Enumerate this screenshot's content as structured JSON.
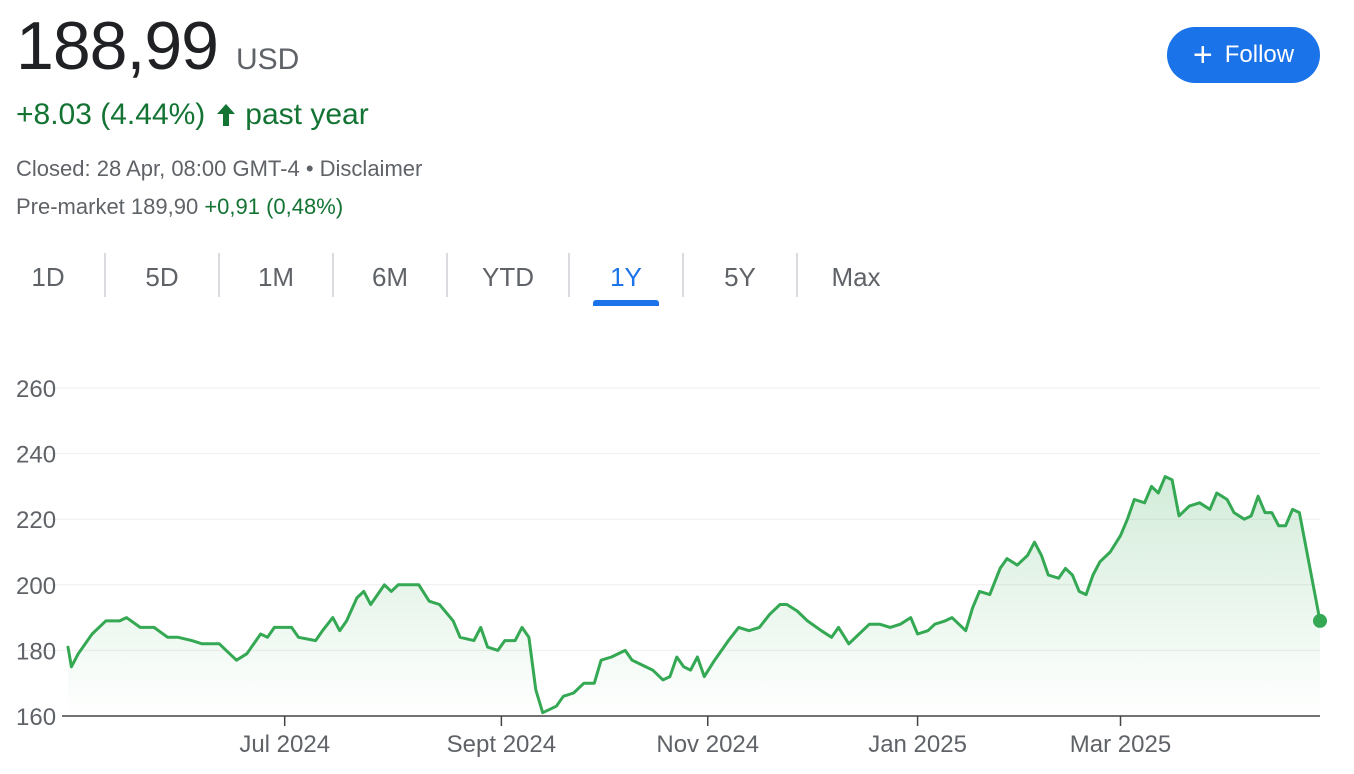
{
  "quote": {
    "price": "188,99",
    "currency": "USD",
    "change": "+8.03 (4.44%)",
    "period": "past year",
    "closed_text": "Closed: 28 Apr, 08:00 GMT-4",
    "separator": " • ",
    "disclaimer": "Disclaimer",
    "premarket_label": "Pre-market 189,90",
    "premarket_change": "+0,91 (0,48%)"
  },
  "follow": {
    "label": "Follow",
    "icon": "plus-icon"
  },
  "ranges": [
    "1D",
    "5D",
    "1M",
    "6M",
    "YTD",
    "1Y",
    "5Y",
    "Max"
  ],
  "active_range": "1Y",
  "colors": {
    "up": "#137333",
    "line": "#34a853",
    "accent": "#1a73e8",
    "axis": "#5f6368",
    "grid": "#eeeeee"
  },
  "chart_data": {
    "type": "area",
    "title": "",
    "xlabel": "",
    "ylabel": "",
    "ylim": [
      160,
      260
    ],
    "yticks": [
      160,
      180,
      200,
      220,
      240,
      260
    ],
    "xlim": [
      "2024-04-29",
      "2025-04-28"
    ],
    "xticks": [
      {
        "label": "Jul 2024",
        "date": "2024-07-01"
      },
      {
        "label": "Sept 2024",
        "date": "2024-09-02"
      },
      {
        "label": "Nov 2024",
        "date": "2024-11-01"
      },
      {
        "label": "Jan 2025",
        "date": "2025-01-01"
      },
      {
        "label": "Mar 2025",
        "date": "2025-03-01"
      }
    ],
    "grid": true,
    "legend": "none",
    "series": [
      {
        "points": [
          [
            "2024-04-29",
            181
          ],
          [
            "2024-04-30",
            175
          ],
          [
            "2024-05-02",
            179
          ],
          [
            "2024-05-06",
            185
          ],
          [
            "2024-05-10",
            189
          ],
          [
            "2024-05-14",
            189
          ],
          [
            "2024-05-16",
            190
          ],
          [
            "2024-05-20",
            187
          ],
          [
            "2024-05-24",
            187
          ],
          [
            "2024-05-28",
            184
          ],
          [
            "2024-05-31",
            184
          ],
          [
            "2024-06-04",
            183
          ],
          [
            "2024-06-07",
            182
          ],
          [
            "2024-06-12",
            182
          ],
          [
            "2024-06-14",
            180
          ],
          [
            "2024-06-17",
            177
          ],
          [
            "2024-06-20",
            179
          ],
          [
            "2024-06-24",
            185
          ],
          [
            "2024-06-26",
            184
          ],
          [
            "2024-06-28",
            187
          ],
          [
            "2024-07-03",
            187
          ],
          [
            "2024-07-05",
            184
          ],
          [
            "2024-07-10",
            183
          ],
          [
            "2024-07-12",
            186
          ],
          [
            "2024-07-15",
            190
          ],
          [
            "2024-07-17",
            186
          ],
          [
            "2024-07-19",
            189
          ],
          [
            "2024-07-22",
            196
          ],
          [
            "2024-07-24",
            198
          ],
          [
            "2024-07-26",
            194
          ],
          [
            "2024-07-30",
            200
          ],
          [
            "2024-08-01",
            198
          ],
          [
            "2024-08-03",
            200
          ],
          [
            "2024-08-07",
            200
          ],
          [
            "2024-08-09",
            200
          ],
          [
            "2024-08-12",
            195
          ],
          [
            "2024-08-15",
            194
          ],
          [
            "2024-08-19",
            189
          ],
          [
            "2024-08-21",
            184
          ],
          [
            "2024-08-25",
            183
          ],
          [
            "2024-08-27",
            187
          ],
          [
            "2024-08-29",
            181
          ],
          [
            "2024-09-01",
            180
          ],
          [
            "2024-09-03",
            183
          ],
          [
            "2024-09-06",
            183
          ],
          [
            "2024-09-08",
            187
          ],
          [
            "2024-09-10",
            184
          ],
          [
            "2024-09-12",
            168
          ],
          [
            "2024-09-14",
            161
          ],
          [
            "2024-09-18",
            163
          ],
          [
            "2024-09-20",
            166
          ],
          [
            "2024-09-23",
            167
          ],
          [
            "2024-09-26",
            170
          ],
          [
            "2024-09-29",
            170
          ],
          [
            "2024-10-01",
            177
          ],
          [
            "2024-10-04",
            178
          ],
          [
            "2024-10-08",
            180
          ],
          [
            "2024-10-10",
            177
          ],
          [
            "2024-10-12",
            176
          ],
          [
            "2024-10-16",
            174
          ],
          [
            "2024-10-19",
            171
          ],
          [
            "2024-10-21",
            172
          ],
          [
            "2024-10-23",
            178
          ],
          [
            "2024-10-25",
            175
          ],
          [
            "2024-10-27",
            174
          ],
          [
            "2024-10-29",
            178
          ],
          [
            "2024-10-31",
            172
          ],
          [
            "2024-11-03",
            177
          ],
          [
            "2024-11-07",
            183
          ],
          [
            "2024-11-10",
            187
          ],
          [
            "2024-11-13",
            186
          ],
          [
            "2024-11-16",
            187
          ],
          [
            "2024-11-19",
            191
          ],
          [
            "2024-11-22",
            194
          ],
          [
            "2024-11-24",
            194
          ],
          [
            "2024-11-27",
            192
          ],
          [
            "2024-11-30",
            189
          ],
          [
            "2024-12-04",
            186
          ],
          [
            "2024-12-07",
            184
          ],
          [
            "2024-12-09",
            187
          ],
          [
            "2024-12-12",
            182
          ],
          [
            "2024-12-15",
            185
          ],
          [
            "2024-12-18",
            188
          ],
          [
            "2024-12-21",
            188
          ],
          [
            "2024-12-24",
            187
          ],
          [
            "2024-12-27",
            188
          ],
          [
            "2024-12-30",
            190
          ],
          [
            "2025-01-01",
            185
          ],
          [
            "2025-01-04",
            186
          ],
          [
            "2025-01-06",
            188
          ],
          [
            "2025-01-09",
            189
          ],
          [
            "2025-01-11",
            190
          ],
          [
            "2025-01-15",
            186
          ],
          [
            "2025-01-17",
            193
          ],
          [
            "2025-01-19",
            198
          ],
          [
            "2025-01-22",
            197
          ],
          [
            "2025-01-25",
            205
          ],
          [
            "2025-01-27",
            208
          ],
          [
            "2025-01-30",
            206
          ],
          [
            "2025-02-02",
            209
          ],
          [
            "2025-02-04",
            213
          ],
          [
            "2025-02-06",
            209
          ],
          [
            "2025-02-08",
            203
          ],
          [
            "2025-02-11",
            202
          ],
          [
            "2025-02-13",
            205
          ],
          [
            "2025-02-15",
            203
          ],
          [
            "2025-02-17",
            198
          ],
          [
            "2025-02-19",
            197
          ],
          [
            "2025-02-21",
            203
          ],
          [
            "2025-02-23",
            207
          ],
          [
            "2025-02-26",
            210
          ],
          [
            "2025-03-01",
            215
          ],
          [
            "2025-03-03",
            220
          ],
          [
            "2025-03-05",
            226
          ],
          [
            "2025-03-08",
            225
          ],
          [
            "2025-03-10",
            230
          ],
          [
            "2025-03-12",
            228
          ],
          [
            "2025-03-14",
            233
          ],
          [
            "2025-03-16",
            232
          ],
          [
            "2025-03-18",
            221
          ],
          [
            "2025-03-21",
            224
          ],
          [
            "2025-03-24",
            225
          ],
          [
            "2025-03-27",
            223
          ],
          [
            "2025-03-29",
            228
          ],
          [
            "2025-04-01",
            226
          ],
          [
            "2025-04-03",
            222
          ],
          [
            "2025-04-06",
            220
          ],
          [
            "2025-04-08",
            221
          ],
          [
            "2025-04-10",
            227
          ],
          [
            "2025-04-12",
            222
          ],
          [
            "2025-04-14",
            222
          ],
          [
            "2025-04-16",
            218
          ],
          [
            "2025-04-18",
            218
          ],
          [
            "2025-04-20",
            223
          ],
          [
            "2025-04-22",
            222
          ]
        ]
      }
    ],
    "last_point": {
      "date": "2025-04-28",
      "value": 188.99
    }
  }
}
